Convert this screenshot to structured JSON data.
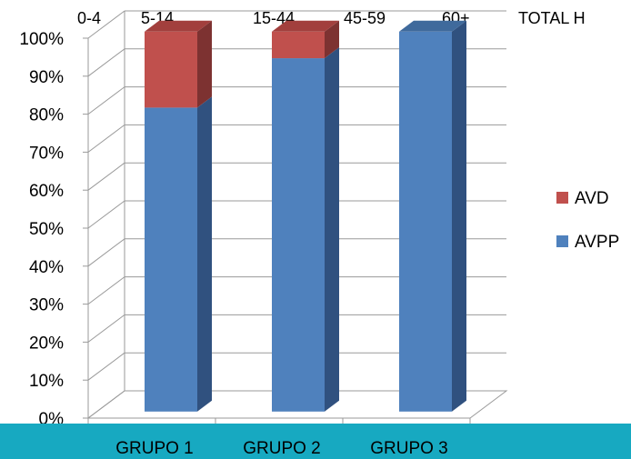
{
  "colors": {
    "avpp_front": "#4f81bd",
    "avpp_side": "#30517f",
    "avpp_top": "#3f6a9c",
    "avd_front": "#c0504d",
    "avd_side": "#7d3231",
    "avd_top": "#a23f3d",
    "gridline": "#9a9a9a",
    "band": "#17a9c1"
  },
  "top_strip": {
    "labels": [
      "0-4",
      "5-14",
      "15-44",
      "45-59",
      "60+",
      "TOTAL H"
    ]
  },
  "chart_data": {
    "type": "bar",
    "stacked": true,
    "style": "3d",
    "categories": [
      "GRUPO 1",
      "GRUPO 2",
      "GRUPO 3"
    ],
    "series": [
      {
        "name": "AVPP",
        "values": [
          80,
          93,
          100
        ]
      },
      {
        "name": "AVD",
        "values": [
          20,
          7,
          0
        ]
      }
    ],
    "ylim": [
      0,
      100
    ],
    "y_ticks": [
      "0%",
      "10%",
      "20%",
      "30%",
      "40%",
      "50%",
      "60%",
      "70%",
      "80%",
      "90%",
      "100%"
    ],
    "y_tick_values": [
      0,
      10,
      20,
      30,
      40,
      50,
      60,
      70,
      80,
      90,
      100
    ],
    "grid": true,
    "legend": {
      "placement": "right",
      "entries": [
        "AVD",
        "AVPP"
      ]
    }
  }
}
